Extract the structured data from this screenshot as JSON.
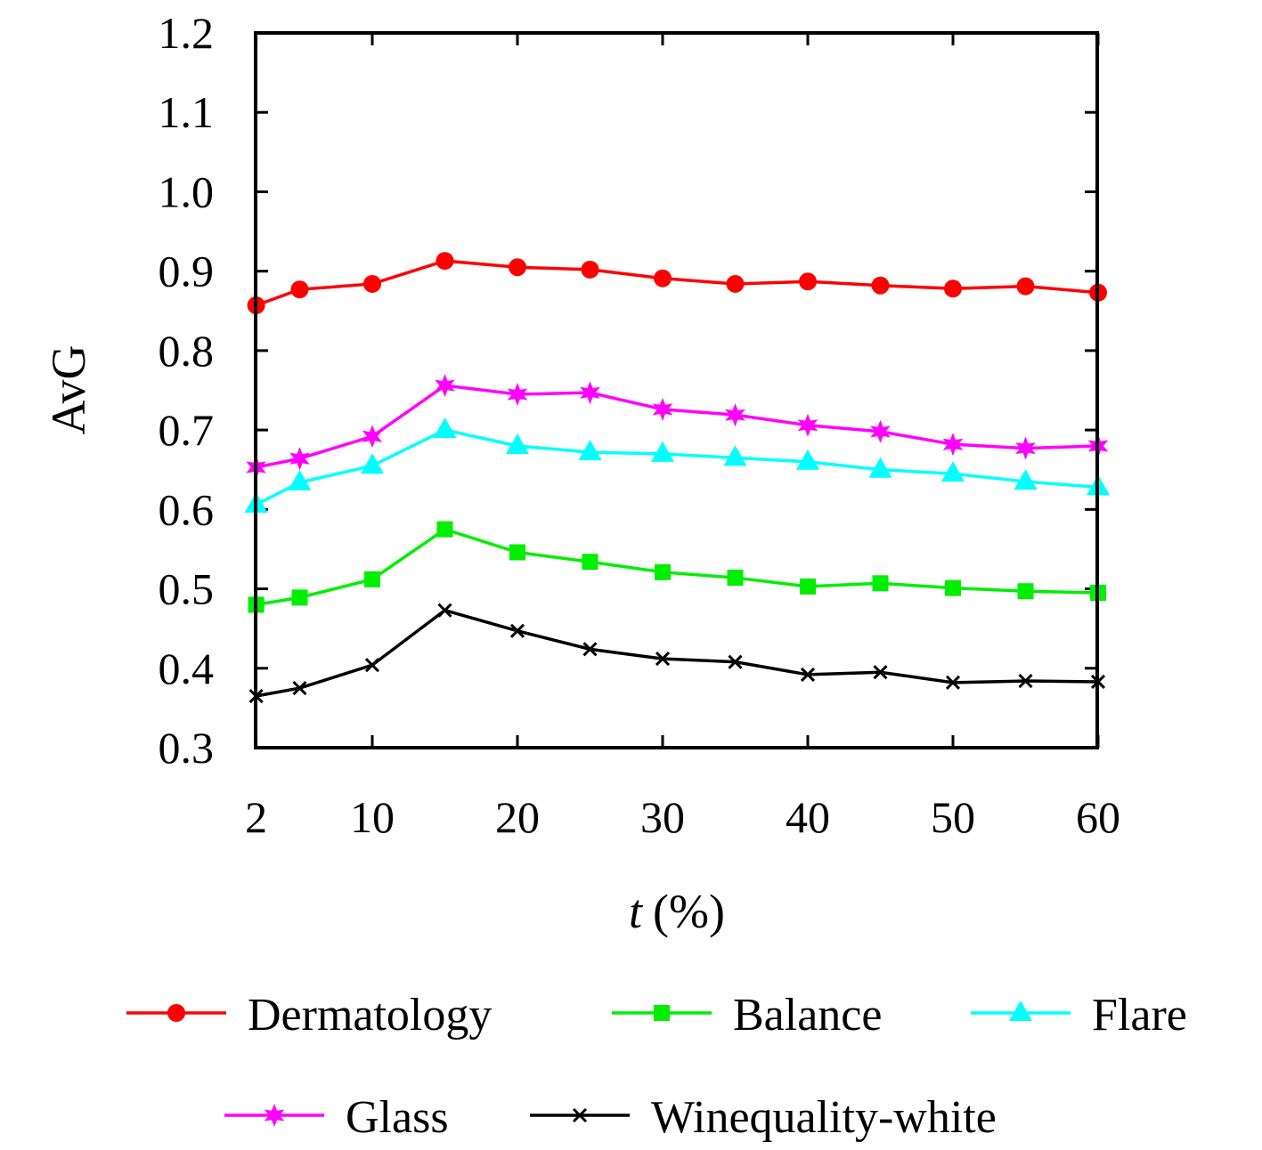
{
  "chart_data": {
    "type": "line",
    "title": "",
    "xlabel": "t (%)",
    "xlabel_var": "t",
    "xlabel_unit": "(%)",
    "ylabel": "AvG",
    "xlim": [
      2,
      60
    ],
    "ylim": [
      0.3,
      1.2
    ],
    "xticks": [
      2,
      10,
      20,
      30,
      40,
      50,
      60
    ],
    "yticks": [
      "0.3",
      "0.4",
      "0.5",
      "0.6",
      "0.7",
      "0.8",
      "0.9",
      "1.0",
      "1.1",
      "1.2"
    ],
    "grid": false,
    "legend_position": "bottom",
    "x": [
      2,
      5,
      10,
      15,
      20,
      25,
      30,
      35,
      40,
      45,
      50,
      55,
      60
    ],
    "series": [
      {
        "name": "Dermatology",
        "color": "#ff0000",
        "marker": "circle",
        "values": [
          0.857,
          0.877,
          0.884,
          0.913,
          0.905,
          0.902,
          0.891,
          0.884,
          0.887,
          0.882,
          0.878,
          0.881,
          0.873
        ]
      },
      {
        "name": "Balance",
        "color": "#00ee00",
        "marker": "square",
        "values": [
          0.48,
          0.489,
          0.512,
          0.575,
          0.546,
          0.534,
          0.521,
          0.514,
          0.503,
          0.507,
          0.501,
          0.497,
          0.495
        ]
      },
      {
        "name": "Flare",
        "color": "#00ffff",
        "marker": "triangle",
        "values": [
          0.606,
          0.634,
          0.655,
          0.7,
          0.68,
          0.672,
          0.67,
          0.665,
          0.66,
          0.65,
          0.645,
          0.635,
          0.628
        ]
      },
      {
        "name": "Glass",
        "color": "#ff00ff",
        "marker": "star",
        "values": [
          0.653,
          0.664,
          0.692,
          0.756,
          0.745,
          0.747,
          0.726,
          0.719,
          0.706,
          0.698,
          0.682,
          0.677,
          0.68
        ]
      },
      {
        "name": "Winequality-white",
        "color": "#000000",
        "marker": "cross",
        "values": [
          0.365,
          0.375,
          0.404,
          0.473,
          0.447,
          0.424,
          0.412,
          0.408,
          0.392,
          0.395,
          0.382,
          0.384,
          0.383
        ]
      }
    ]
  }
}
